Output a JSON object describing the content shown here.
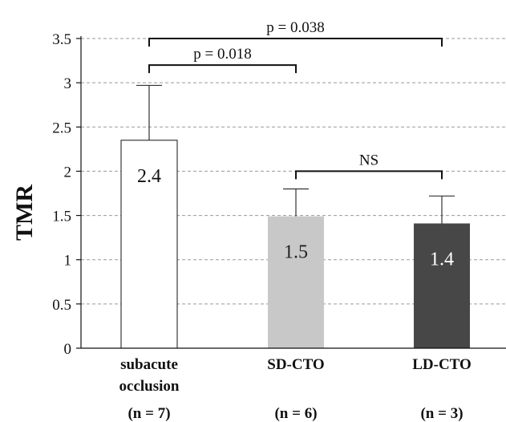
{
  "chart_data": {
    "type": "bar",
    "ylabel": "TMR",
    "ylim": [
      0,
      3.5
    ],
    "yticks": [
      0,
      0.5,
      1,
      1.5,
      2,
      2.5,
      3,
      3.5
    ],
    "ytick_labels": [
      "0",
      "0.5",
      "1",
      "1.5",
      "2",
      "2.5",
      "3",
      "3.5"
    ],
    "grid": true,
    "categories": [
      {
        "lines": [
          "subacute",
          "occlusion"
        ],
        "n_label": "(n = 7)"
      },
      {
        "lines": [
          "SD-CTO"
        ],
        "n_label": "(n = 6)"
      },
      {
        "lines": [
          "LD-CTO"
        ],
        "n_label": "(n = 3)"
      }
    ],
    "values": [
      2.35,
      1.49,
      1.41
    ],
    "error_upper": [
      0.62,
      0.31,
      0.31
    ],
    "data_labels": [
      "2.4",
      "1.5",
      "1.4"
    ],
    "bar_colors": [
      "#ffffff",
      "#c8c8c8",
      "#474747"
    ],
    "label_colors": [
      "#111111",
      "#222222",
      "#ffffff"
    ],
    "comparisons": [
      {
        "from": 0,
        "to": 2,
        "label": "p = 0.038",
        "y": 3.5
      },
      {
        "from": 0,
        "to": 1,
        "label": "p = 0.018",
        "y": 3.2
      },
      {
        "from": 1,
        "to": 2,
        "label": "NS",
        "y": 2.0
      }
    ]
  }
}
